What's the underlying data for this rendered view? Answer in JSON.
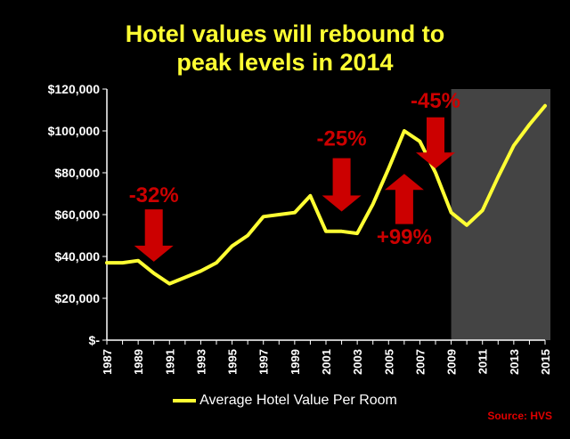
{
  "chart_data": {
    "type": "line",
    "title": "Hotel values will rebound to peak levels in 2014",
    "title_lines": [
      "Hotel values will rebound to",
      "peak levels in 2014"
    ],
    "xlabel": "",
    "ylabel": "",
    "ylim": [
      0,
      120000
    ],
    "y_ticks": [
      0,
      20000,
      40000,
      60000,
      80000,
      100000,
      120000
    ],
    "y_tick_labels": [
      "$-",
      "$20,000",
      "$40,000",
      "$60,000",
      "$80,000",
      "$100,000",
      "$120,000"
    ],
    "x_tick_labels": [
      "1987",
      "1989",
      "1991",
      "1993",
      "1995",
      "1997",
      "1999",
      "2001",
      "2003",
      "2005",
      "2007",
      "2009",
      "2011",
      "2013",
      "2015"
    ],
    "x": [
      1987,
      1988,
      1989,
      1990,
      1991,
      1992,
      1993,
      1994,
      1995,
      1996,
      1997,
      1998,
      1999,
      2000,
      2001,
      2002,
      2003,
      2004,
      2005,
      2006,
      2007,
      2008,
      2009,
      2010,
      2011,
      2012,
      2013,
      2014,
      2015
    ],
    "series": [
      {
        "name": "Average Hotel Value Per Room",
        "values": [
          37000,
          37000,
          38000,
          32000,
          27000,
          30000,
          33000,
          37000,
          45000,
          50000,
          59000,
          60000,
          61000,
          69000,
          52000,
          52000,
          51000,
          65000,
          82000,
          100000,
          95000,
          80000,
          61000,
          55000,
          62000,
          78000,
          93000,
          103000,
          112000
        ]
      }
    ],
    "forecast_shading": {
      "from_year": 2009,
      "to_year": 2015
    },
    "annotations": [
      {
        "text": "-32%",
        "arrow": "down",
        "year": 1990,
        "color": "#CC0000"
      },
      {
        "text": "-25%",
        "arrow": "down",
        "year": 2002,
        "color": "#CC0000"
      },
      {
        "text": "-45%",
        "arrow": "down",
        "year": 2008,
        "color": "#CC0000"
      },
      {
        "text": "+99%",
        "arrow": "up",
        "year": 2006,
        "color": "#CC0000"
      }
    ],
    "grid": false,
    "legend_position": "bottom",
    "colors": {
      "background": "#000000",
      "line": "#FFFF33",
      "text": "#FFFFFF",
      "annotation": "#CC0000",
      "arrow": "#CC0000",
      "shade": "#444444"
    }
  },
  "legend_label": "Average Hotel Value Per Room",
  "source": "Source: HVS"
}
